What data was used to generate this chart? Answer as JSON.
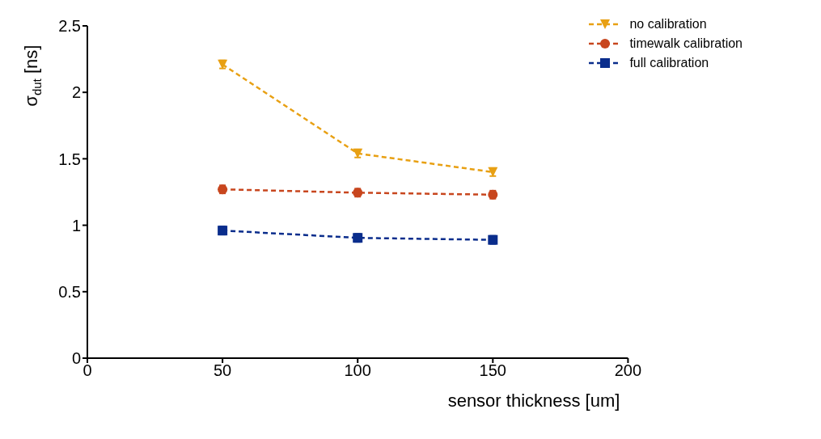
{
  "chart_data": {
    "type": "line",
    "xlabel": "sensor thickness [um]",
    "ylabel": "σ$_{dut}$ [ns]",
    "x": [
      50,
      100,
      150
    ],
    "xlim": [
      0,
      200
    ],
    "xticks": [
      0,
      50,
      100,
      150,
      200
    ],
    "ylim": [
      0,
      2.5
    ],
    "yticks": [
      0,
      0.5,
      1,
      1.5,
      2,
      2.5
    ],
    "legend": "top right",
    "line_style": "dashed",
    "series": [
      {
        "name": "no calibration",
        "color": "#e8a013",
        "marker": "triangle",
        "values": [
          2.21,
          1.54,
          1.4
        ],
        "errors": [
          0.03,
          0.03,
          0.03
        ]
      },
      {
        "name": "timewalk calibration",
        "color": "#c8461e",
        "marker": "circle",
        "values": [
          1.27,
          1.245,
          1.23
        ],
        "errors": [
          0.03,
          0.03,
          0.03
        ]
      },
      {
        "name": "full calibration",
        "color": "#0a2d8c",
        "marker": "square",
        "values": [
          0.96,
          0.905,
          0.89
        ],
        "errors": [
          0.03,
          0.03,
          0.03
        ]
      }
    ]
  }
}
